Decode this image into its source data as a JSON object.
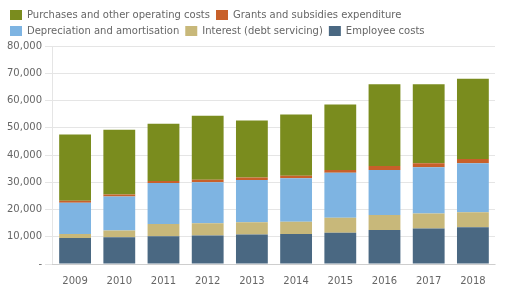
{
  "chart_data": {
    "type": "bar",
    "stacked": true,
    "categories": [
      "2009",
      "2010",
      "2011",
      "2012",
      "2013",
      "2014",
      "2015",
      "2016",
      "2017",
      "2018"
    ],
    "series": [
      {
        "name": "Employee costs",
        "color": "#4a6882",
        "values": [
          9500,
          9800,
          10200,
          10500,
          10800,
          11000,
          11500,
          12500,
          13000,
          13500
        ]
      },
      {
        "name": "Interest (debt servicing)",
        "color": "#c8b87a",
        "values": [
          1500,
          2500,
          4500,
          4500,
          4500,
          4500,
          5500,
          5500,
          5500,
          5500
        ]
      },
      {
        "name": "Depreciation and amortisation",
        "color": "#7eb4e2",
        "values": [
          11500,
          12500,
          15000,
          15000,
          15500,
          16000,
          16500,
          16500,
          17000,
          18000
        ]
      },
      {
        "name": "Grants and subsidies expenditure",
        "color": "#c8602a",
        "values": [
          700,
          700,
          800,
          900,
          900,
          900,
          1000,
          1500,
          1500,
          1500
        ]
      },
      {
        "name": "Purchases and other operating costs",
        "color": "#7a8c1e",
        "values": [
          24300,
          23800,
          21000,
          23500,
          21000,
          22500,
          24000,
          30000,
          29000,
          29500
        ]
      }
    ],
    "ylim": [
      0,
      80000
    ],
    "yticks": [
      {
        "value": 0,
        "label": "-"
      },
      {
        "value": 10000,
        "label": "10,000"
      },
      {
        "value": 20000,
        "label": "20,000"
      },
      {
        "value": 30000,
        "label": "30,000"
      },
      {
        "value": 40000,
        "label": "40,000"
      },
      {
        "value": 50000,
        "label": "50,000"
      },
      {
        "value": 60000,
        "label": "60,000"
      },
      {
        "value": 70000,
        "label": "70,000"
      },
      {
        "value": 80000,
        "label": "80,000"
      }
    ],
    "grid": true,
    "legend": "top"
  }
}
